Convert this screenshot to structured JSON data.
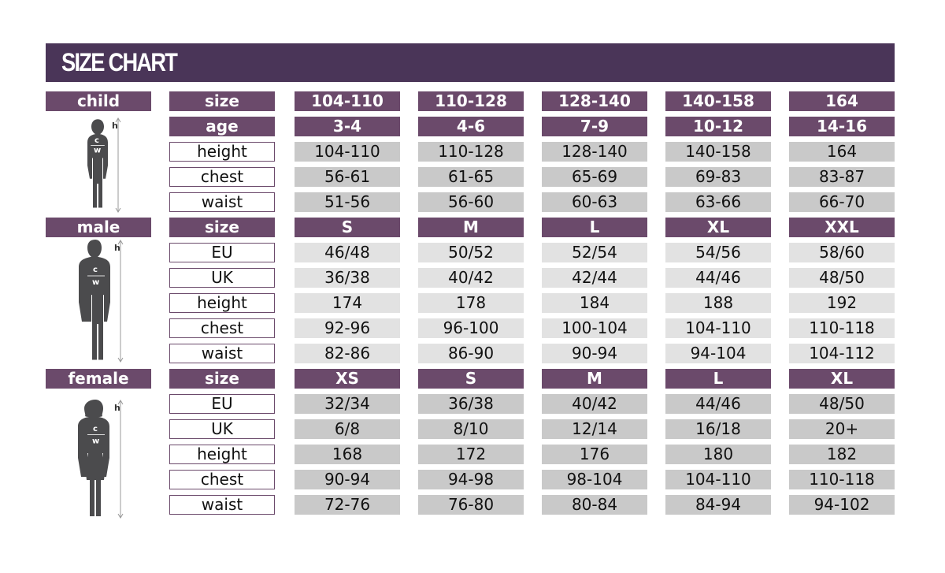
{
  "title": "SIZE CHART",
  "colors": {
    "title_bg": "#4a3558",
    "header_bg": "#6b4a6b",
    "cell_gray": "#c9c9c9",
    "cell_light_gray": "#e2e2e2"
  },
  "sections": [
    {
      "group": "child",
      "icon": "child-silhouette-icon",
      "rows": [
        {
          "field": "size",
          "header": true,
          "values": [
            "104-110",
            "110-128",
            "128-140",
            "140-158",
            "164"
          ]
        },
        {
          "field": "age",
          "header": true,
          "values": [
            "3-4",
            "4-6",
            "7-9",
            "10-12",
            "14-16"
          ]
        },
        {
          "field": "height",
          "values": [
            "104-110",
            "110-128",
            "128-140",
            "140-158",
            "164"
          ]
        },
        {
          "field": "chest",
          "values": [
            "56-61",
            "61-65",
            "65-69",
            "69-83",
            "83-87"
          ]
        },
        {
          "field": "waist",
          "values": [
            "51-56",
            "56-60",
            "60-63",
            "63-66",
            "66-70"
          ]
        }
      ]
    },
    {
      "group": "male",
      "icon": "male-silhouette-icon",
      "rows": [
        {
          "field": "size",
          "header": true,
          "values": [
            "S",
            "M",
            "L",
            "XL",
            "XXL"
          ]
        },
        {
          "field": "EU",
          "values": [
            "46/48",
            "50/52",
            "52/54",
            "54/56",
            "58/60"
          ]
        },
        {
          "field": "UK",
          "values": [
            "36/38",
            "40/42",
            "42/44",
            "44/46",
            "48/50"
          ]
        },
        {
          "field": "height",
          "values": [
            "174",
            "178",
            "184",
            "188",
            "192"
          ]
        },
        {
          "field": "chest",
          "values": [
            "92-96",
            "96-100",
            "100-104",
            "104-110",
            "110-118"
          ]
        },
        {
          "field": "waist",
          "values": [
            "82-86",
            "86-90",
            "90-94",
            "94-104",
            "104-112"
          ]
        }
      ]
    },
    {
      "group": "female",
      "icon": "female-silhouette-icon",
      "rows": [
        {
          "field": "size",
          "header": true,
          "values": [
            "XS",
            "S",
            "M",
            "L",
            "XL"
          ]
        },
        {
          "field": "EU",
          "values": [
            "32/34",
            "36/38",
            "40/42",
            "44/46",
            "48/50"
          ]
        },
        {
          "field": "UK",
          "values": [
            "6/8",
            "8/10",
            "12/14",
            "16/18",
            "20+"
          ]
        },
        {
          "field": "height",
          "values": [
            "168",
            "172",
            "176",
            "180",
            "182"
          ]
        },
        {
          "field": "chest",
          "values": [
            "90-94",
            "94-98",
            "98-104",
            "104-110",
            "110-118"
          ]
        },
        {
          "field": "waist",
          "values": [
            "72-76",
            "76-80",
            "80-84",
            "84-94",
            "94-102"
          ]
        }
      ]
    }
  ],
  "figure_labels": {
    "height": "h",
    "chest": "c",
    "waist": "w"
  }
}
